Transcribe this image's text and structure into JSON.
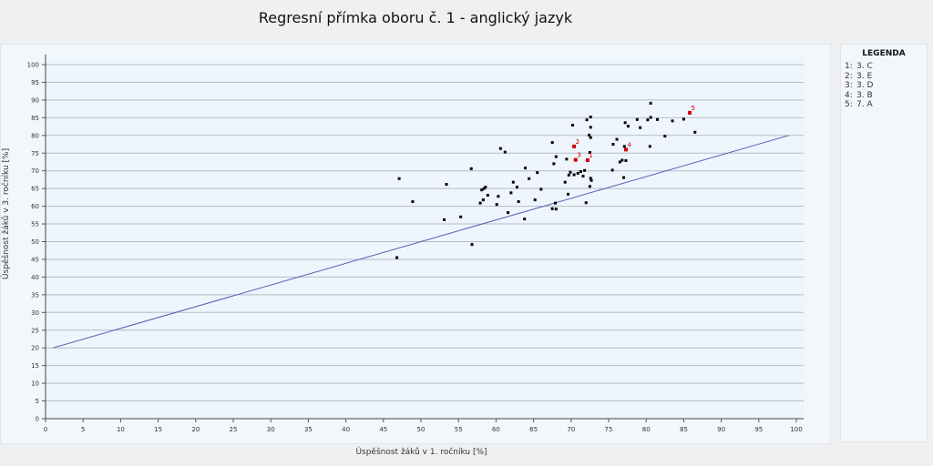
{
  "chart_data": {
    "type": "scatter",
    "title": "Regresní přímka oboru č. 1 - anglický jazyk",
    "xlabel": "Úspěšnost žáků v 1. ročníku [%]",
    "ylabel": "Úspěšnost žáků v 3. ročníku [%]",
    "xlim": [
      0,
      100
    ],
    "ylim": [
      0,
      100
    ],
    "x_ticks": [
      0,
      5,
      10,
      15,
      20,
      25,
      30,
      35,
      40,
      45,
      50,
      55,
      60,
      65,
      70,
      75,
      80,
      85,
      90,
      95,
      100
    ],
    "y_ticks": [
      0,
      5,
      10,
      15,
      20,
      25,
      30,
      35,
      40,
      45,
      50,
      55,
      60,
      65,
      70,
      75,
      80,
      85,
      90,
      95,
      100
    ],
    "grid": "horizontal",
    "regression_line": {
      "x": [
        1,
        99
      ],
      "y": [
        20,
        80
      ],
      "color": "#5a5ab4"
    },
    "series": [
      {
        "color": "#000000",
        "points": [
          [
            46.8,
            45.5
          ],
          [
            47.1,
            67.8
          ],
          [
            48.9,
            61.3
          ],
          [
            53.1,
            56.2
          ],
          [
            53.4,
            66.2
          ],
          [
            55.3,
            57.0
          ],
          [
            56.7,
            70.6
          ],
          [
            56.8,
            49.2
          ],
          [
            57.9,
            60.9
          ],
          [
            58.1,
            64.6
          ],
          [
            58.3,
            61.8
          ],
          [
            58.4,
            65.0
          ],
          [
            58.6,
            65.4
          ],
          [
            58.9,
            63.1
          ],
          [
            60.1,
            60.5
          ],
          [
            60.3,
            62.8
          ],
          [
            60.6,
            76.3
          ],
          [
            61.2,
            75.3
          ],
          [
            61.6,
            58.2
          ],
          [
            62.0,
            63.8
          ],
          [
            62.3,
            66.8
          ],
          [
            62.8,
            65.4
          ],
          [
            63.0,
            61.3
          ],
          [
            63.8,
            56.4
          ],
          [
            63.9,
            70.8
          ],
          [
            64.4,
            67.8
          ],
          [
            65.2,
            61.8
          ],
          [
            65.5,
            69.5
          ],
          [
            66.0,
            64.8
          ],
          [
            67.5,
            78.0
          ],
          [
            67.5,
            59.3
          ],
          [
            67.7,
            72.0
          ],
          [
            67.9,
            60.9
          ],
          [
            68.0,
            74.0
          ],
          [
            68.0,
            59.2
          ],
          [
            69.2,
            66.8
          ],
          [
            69.4,
            73.3
          ],
          [
            69.6,
            63.4
          ],
          [
            69.7,
            68.8
          ],
          [
            69.9,
            69.6
          ],
          [
            70.2,
            82.9
          ],
          [
            70.4,
            68.9
          ],
          [
            70.9,
            69.3
          ],
          [
            71.3,
            69.8
          ],
          [
            71.6,
            68.5
          ],
          [
            71.8,
            70.1
          ],
          [
            72.0,
            61.0
          ],
          [
            72.1,
            84.4
          ],
          [
            72.4,
            80.1
          ],
          [
            72.5,
            65.6
          ],
          [
            72.6,
            85.2
          ],
          [
            72.6,
            67.9
          ],
          [
            72.6,
            82.3
          ],
          [
            72.6,
            79.4
          ],
          [
            72.7,
            67.3
          ],
          [
            72.5,
            75.2
          ],
          [
            75.5,
            70.2
          ],
          [
            75.6,
            77.5
          ],
          [
            76.1,
            78.9
          ],
          [
            76.5,
            72.5
          ],
          [
            76.8,
            73.0
          ],
          [
            77.0,
            68.1
          ],
          [
            77.1,
            76.9
          ],
          [
            77.2,
            83.6
          ],
          [
            77.3,
            72.9
          ],
          [
            77.6,
            82.6
          ],
          [
            78.8,
            84.5
          ],
          [
            79.2,
            82.2
          ],
          [
            80.2,
            84.4
          ],
          [
            80.6,
            85.1
          ],
          [
            80.6,
            89.1
          ],
          [
            80.5,
            76.9
          ],
          [
            81.5,
            84.5
          ],
          [
            82.5,
            79.8
          ],
          [
            83.5,
            84.1
          ],
          [
            85.0,
            84.6
          ],
          [
            86.5,
            80.9
          ]
        ]
      },
      {
        "color": "#d00000",
        "points": [
          {
            "label": "1",
            "x": 72.2,
            "y": 73.0
          },
          {
            "label": "2",
            "x": 70.4,
            "y": 76.9
          },
          {
            "label": "3",
            "x": 70.6,
            "y": 73.1
          },
          {
            "label": "4",
            "x": 77.3,
            "y": 76.0
          },
          {
            "label": "5",
            "x": 85.8,
            "y": 86.4
          }
        ]
      }
    ]
  },
  "legend": {
    "title": "LEGENDA",
    "items": [
      {
        "num": "1:",
        "text": "3. C"
      },
      {
        "num": "2:",
        "text": "3. E"
      },
      {
        "num": "3:",
        "text": "3. D"
      },
      {
        "num": "4:",
        "text": "3. B"
      },
      {
        "num": "5:",
        "text": "7. A"
      }
    ]
  }
}
